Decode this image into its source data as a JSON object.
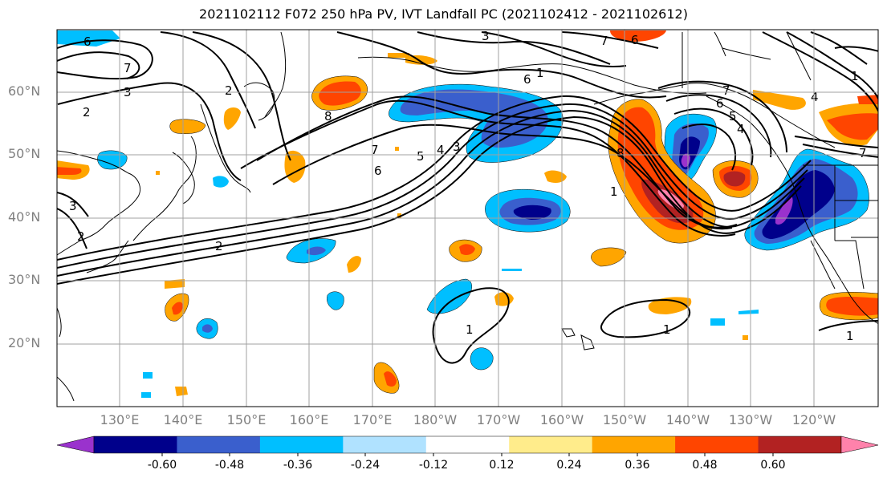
{
  "title": "2021102112 F072 250 hPa PV, IVT Landfall PC (2021102412 - 2021102612)",
  "lat_labels": [
    "60°N",
    "50°N",
    "40°N",
    "30°N",
    "20°N"
  ],
  "lon_labels": [
    "130°E",
    "140°E",
    "150°E",
    "160°E",
    "170°E",
    "180°W",
    "170°W",
    "160°W",
    "150°W",
    "140°W",
    "130°W",
    "120°W"
  ],
  "colorbar": {
    "colors": [
      "#9a32cd",
      "#00008b",
      "#3a5fcd",
      "#00bfff",
      "#b0e2ff",
      "#ffffff",
      "#ffec8b",
      "#ffa500",
      "#ff4500",
      "#b22222",
      "#ff82ab"
    ],
    "tick_labels": [
      "-0.60",
      "-0.48",
      "-0.36",
      "-0.24",
      "-0.12",
      "0.12",
      "0.24",
      "0.36",
      "0.48",
      "0.60"
    ]
  },
  "contour_labels": [
    "6",
    "7",
    "3",
    "2",
    "3",
    "6",
    "7",
    "1",
    "6",
    "8",
    "7",
    "6",
    "5",
    "4",
    "3",
    "2",
    "8",
    "1",
    "7",
    "6",
    "5",
    "4",
    "3",
    "2",
    "2",
    "1",
    "1",
    "1",
    "1",
    "4",
    "7"
  ],
  "colors": {
    "contour": "#000000",
    "grid": "#a0a0a0",
    "coast": "#000000",
    "axis_label": "#808080"
  }
}
